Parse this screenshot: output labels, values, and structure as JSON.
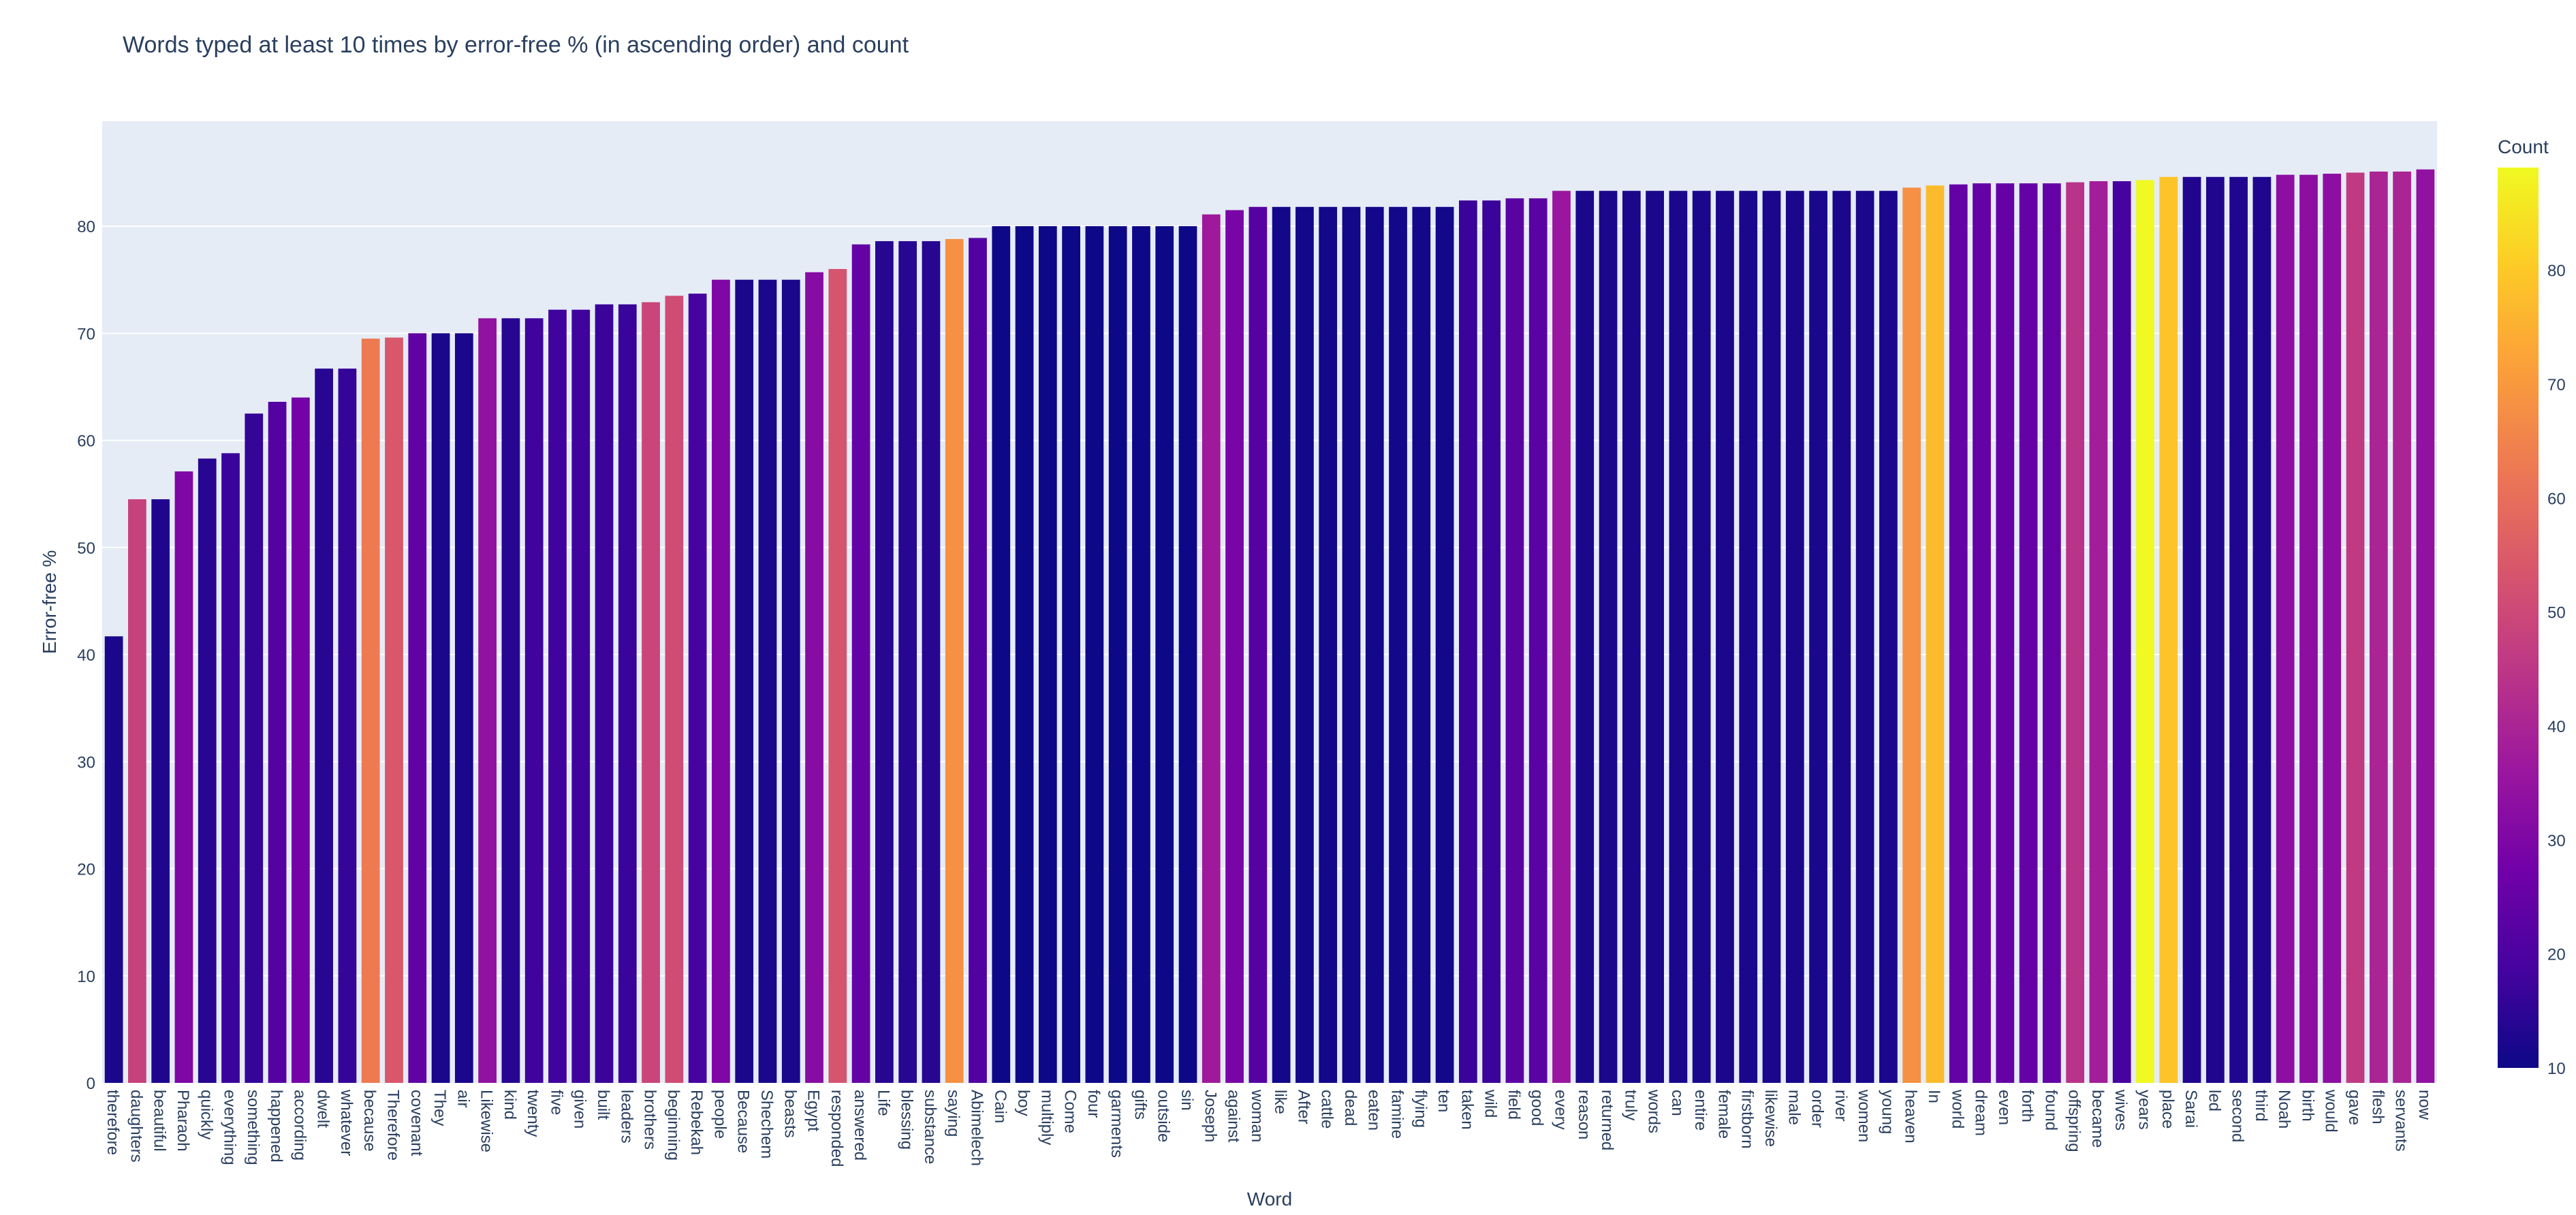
{
  "chart_data": {
    "type": "bar",
    "title": "Words typed at least 10 times by error-free % (in ascending order) and count",
    "xlabel": "Word",
    "ylabel": "Error-free %",
    "ylim": [
      0,
      90
    ],
    "yticks": [
      0,
      10,
      20,
      30,
      40,
      50,
      60,
      70,
      80
    ],
    "grid": true,
    "colorbar": {
      "title": "Count",
      "range": [
        10,
        89
      ],
      "ticks": [
        10,
        20,
        30,
        40,
        50,
        60,
        70,
        80
      ],
      "colorscale": [
        "#0d0887",
        "#46039f",
        "#7201a8",
        "#9c179e",
        "#bd3786",
        "#d8576b",
        "#ed7953",
        "#fb9f3a",
        "#fdca26",
        "#f0f921"
      ]
    },
    "categories": [
      "therefore",
      "daughters",
      "beautiful",
      "Pharaoh",
      "quickly",
      "everything",
      "something",
      "happened",
      "according",
      "dwelt",
      "whatever",
      "because",
      "Therefore",
      "covenant",
      "They",
      "air",
      "Likewise",
      "kind",
      "twenty",
      "five",
      "given",
      "built",
      "leaders",
      "brothers",
      "beginning",
      "Rebekah",
      "people",
      "Because",
      "Shechem",
      "beasts",
      "Egypt",
      "responded",
      "answered",
      "Life",
      "blessing",
      "substance",
      "saying",
      "Abimelech",
      "Cain",
      "boy",
      "multiply",
      "Come",
      "four",
      "garments",
      "gifts",
      "outside",
      "sin",
      "Joseph",
      "against",
      "woman",
      "like",
      "After",
      "cattle",
      "dead",
      "eaten",
      "famine",
      "flying",
      "ten",
      "taken",
      "wild",
      "field",
      "good",
      "every",
      "reason",
      "returned",
      "truly",
      "words",
      "can",
      "entire",
      "female",
      "firstborn",
      "likewise",
      "male",
      "order",
      "river",
      "women",
      "young",
      "heaven",
      "In",
      "world",
      "dream",
      "even",
      "forth",
      "found",
      "offspring",
      "became",
      "wives",
      "years",
      "place",
      "Sarai",
      "led",
      "second",
      "third",
      "Noah",
      "birth",
      "would",
      "gave",
      "flesh",
      "servants",
      "now"
    ],
    "values": [
      41.7,
      54.5,
      54.5,
      57.1,
      58.3,
      58.8,
      62.5,
      63.6,
      64.0,
      66.7,
      66.7,
      69.5,
      69.6,
      70.0,
      70.0,
      70.0,
      71.4,
      71.4,
      71.4,
      72.2,
      72.2,
      72.7,
      72.7,
      72.9,
      73.5,
      73.7,
      75.0,
      75.0,
      75.0,
      75.0,
      75.7,
      76.0,
      78.3,
      78.6,
      78.6,
      78.6,
      78.8,
      78.9,
      80.0,
      80.0,
      80.0,
      80.0,
      80.0,
      80.0,
      80.0,
      80.0,
      80.0,
      81.1,
      81.5,
      81.8,
      81.8,
      81.8,
      81.8,
      81.8,
      81.8,
      81.8,
      81.8,
      81.8,
      82.4,
      82.4,
      82.6,
      82.6,
      83.3,
      83.3,
      83.3,
      83.3,
      83.3,
      83.3,
      83.3,
      83.3,
      83.3,
      83.3,
      83.3,
      83.3,
      83.3,
      83.3,
      83.3,
      83.6,
      83.8,
      83.9,
      84.0,
      84.0,
      84.0,
      84.0,
      84.1,
      84.2,
      84.2,
      84.3,
      84.6,
      84.6,
      84.6,
      84.6,
      84.6,
      84.8,
      84.8,
      84.9,
      85.0,
      85.1,
      85.1,
      85.3
    ],
    "counts": [
      12,
      48,
      13,
      30,
      14,
      17,
      16,
      22,
      28,
      14,
      16,
      63,
      54,
      24,
      12,
      12,
      34,
      14,
      18,
      18,
      18,
      17,
      17,
      49,
      51,
      19,
      30,
      12,
      12,
      12,
      32,
      53,
      25,
      14,
      14,
      14,
      68,
      21,
      10,
      10,
      10,
      10,
      10,
      10,
      10,
      10,
      10,
      37,
      29,
      22,
      11,
      11,
      11,
      11,
      11,
      11,
      11,
      11,
      17,
      17,
      23,
      23,
      36,
      12,
      12,
      12,
      12,
      12,
      12,
      12,
      12,
      12,
      12,
      12,
      12,
      12,
      12,
      68,
      77,
      25,
      25,
      25,
      25,
      25,
      44,
      38,
      19,
      89,
      79,
      13,
      13,
      13,
      13,
      33,
      33,
      33,
      46,
      40,
      40,
      34
    ]
  }
}
